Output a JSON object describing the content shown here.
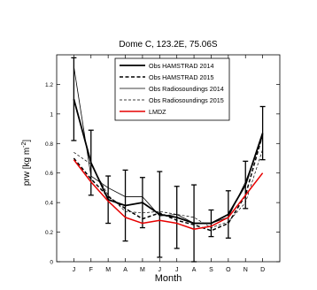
{
  "chart_data": {
    "type": "line",
    "title": "Dome C, 123.2E, 75.06S",
    "xlabel": "Month",
    "ylabel": "prw [kg m",
    "ylabel_superscript": "-2",
    "ylabel_close": "]",
    "categories": [
      "J",
      "F",
      "M",
      "A",
      "M",
      "J",
      "J",
      "A",
      "S",
      "O",
      "N",
      "D"
    ],
    "ylim": [
      0,
      1.4
    ],
    "yticks": [
      "0",
      "0.2",
      "0.4",
      "0.6",
      "0.8",
      "1",
      "1.2"
    ],
    "grid": false,
    "legend_position": "top-center",
    "series": [
      {
        "name": "Obs HAMSTRAD 2014",
        "color": "#000000",
        "style": "solid-thick",
        "values": [
          1.1,
          0.67,
          0.42,
          0.38,
          0.4,
          0.32,
          0.3,
          0.26,
          0.26,
          0.32,
          0.52,
          0.87
        ],
        "error": [
          0.28,
          0.22,
          0.16,
          0.24,
          0.17,
          0.29,
          0.21,
          0.26,
          0.09,
          0.16,
          0.16,
          0.18
        ]
      },
      {
        "name": "Obs HAMSTRAD 2015",
        "color": "#000000",
        "style": "dashed-thick",
        "values": [
          0.7,
          0.56,
          0.44,
          0.36,
          0.29,
          0.33,
          0.28,
          0.25,
          0.21,
          0.26,
          0.45,
          0.86
        ]
      },
      {
        "name": "Obs Radiosoundings 2014",
        "color": "#000000",
        "style": "solid-thin",
        "values": [
          1.32,
          0.58,
          0.5,
          0.44,
          0.44,
          0.31,
          0.32,
          0.26,
          0.26,
          0.3,
          0.54,
          0.85
        ]
      },
      {
        "name": "Obs Radiosoundings 2015",
        "color": "#000000",
        "style": "dashed-thin",
        "values": [
          0.74,
          0.66,
          0.45,
          0.34,
          0.33,
          0.34,
          0.32,
          0.3,
          0.23,
          0.27,
          0.4,
          0.76
        ]
      },
      {
        "name": "LMDZ",
        "color": "#e60000",
        "style": "solid-red",
        "values": [
          0.69,
          0.54,
          0.41,
          0.3,
          0.26,
          0.28,
          0.26,
          0.22,
          0.24,
          0.3,
          0.45,
          0.6
        ]
      }
    ]
  }
}
